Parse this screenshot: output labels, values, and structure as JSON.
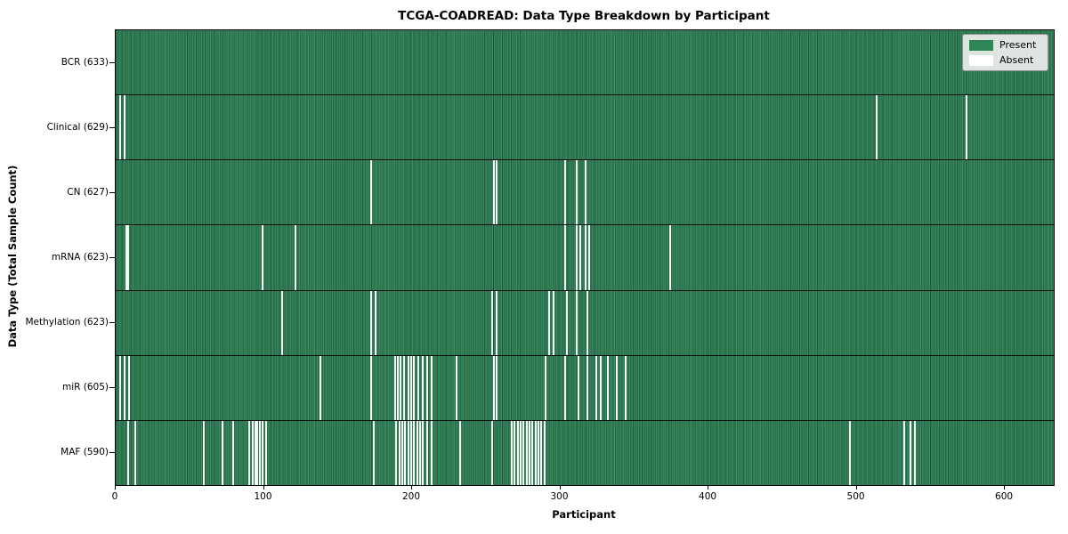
{
  "chart_data": {
    "type": "heatmap",
    "title": "TCGA-COADREAD: Data Type Breakdown by Participant",
    "xlabel": "Participant",
    "ylabel": "Data Type (Total Sample Count)",
    "x_range": [
      0,
      633
    ],
    "x_ticks": [
      0,
      100,
      200,
      300,
      400,
      500,
      600
    ],
    "n_participants": 633,
    "grid": false,
    "legend_position": "upper right",
    "colors": {
      "present": "#2e7d52",
      "absent": "#ffffff",
      "present_swatch": "#2e8556"
    },
    "legend": [
      {
        "label": "Present",
        "color": "#2e8556"
      },
      {
        "label": "Absent",
        "color": "#ffffff"
      }
    ],
    "rows": [
      {
        "label": "BCR (633)",
        "data_type": "BCR",
        "present_count": 633,
        "absent_participants": []
      },
      {
        "label": "Clinical (629)",
        "data_type": "Clinical",
        "present_count": 629,
        "absent_participants": [
          3,
          6,
          513,
          574
        ]
      },
      {
        "label": "CN (627)",
        "data_type": "CN",
        "present_count": 627,
        "absent_participants": [
          172,
          255,
          257,
          303,
          311,
          317
        ]
      },
      {
        "label": "mRNA (623)",
        "data_type": "mRNA",
        "present_count": 623,
        "absent_participants": [
          7,
          8,
          99,
          121,
          303,
          311,
          313,
          317,
          319,
          374
        ]
      },
      {
        "label": "Methylation (623)",
        "data_type": "Methylation",
        "present_count": 623,
        "absent_participants": [
          112,
          172,
          175,
          254,
          257,
          292,
          295,
          304,
          311,
          318
        ]
      },
      {
        "label": "miR (605)",
        "data_type": "miR",
        "present_count": 605,
        "absent_participants": [
          3,
          6,
          9,
          138,
          172,
          188,
          190,
          192,
          194,
          197,
          199,
          201,
          204,
          207,
          210,
          213,
          230,
          255,
          257,
          290,
          303,
          312,
          318,
          324,
          327,
          332,
          338,
          344
        ]
      },
      {
        "label": "MAF (590)",
        "data_type": "MAF",
        "present_count": 590,
        "absent_participants": [
          8,
          13,
          59,
          72,
          79,
          90,
          92,
          94,
          95,
          97,
          99,
          101,
          174,
          189,
          191,
          193,
          195,
          197,
          199,
          201,
          203,
          205,
          207,
          210,
          213,
          232,
          254,
          267,
          269,
          271,
          273,
          275,
          277,
          279,
          281,
          283,
          285,
          287,
          289,
          495,
          532,
          536,
          539
        ]
      }
    ]
  }
}
